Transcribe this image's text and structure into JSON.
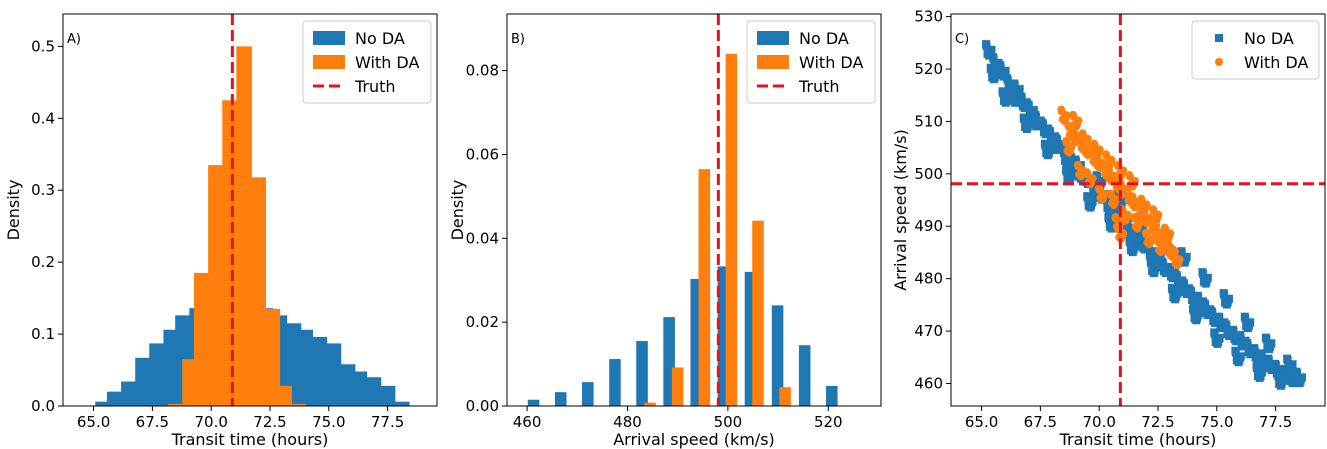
{
  "colors": {
    "no_da": "#1f77b4",
    "with_da": "#ff7f0e",
    "truth": "#e8101e"
  },
  "chart_data": [
    {
      "type": "bar",
      "panel_label": "A)",
      "xlabel": "Transit time (hours)",
      "ylabel": "Density",
      "xlim": [
        63.7,
        79.6
      ],
      "ylim": [
        0,
        0.545
      ],
      "xticks": [
        65.0,
        67.5,
        70.0,
        72.5,
        75.0,
        77.5
      ],
      "xtick_labels": [
        "65.0",
        "67.5",
        "70.0",
        "72.5",
        "75.0",
        "77.5"
      ],
      "yticks": [
        0.0,
        0.1,
        0.2,
        0.3,
        0.4,
        0.5
      ],
      "ytick_labels": [
        "0.0",
        "0.1",
        "0.2",
        "0.3",
        "0.4",
        "0.5"
      ],
      "bin_width": 0.66,
      "series": [
        {
          "name": "No DA",
          "color": "#1f77b4",
          "x": [
            65.4,
            65.9,
            66.5,
            67.1,
            67.7,
            68.3,
            68.8,
            69.4,
            70.0,
            70.5,
            71.1,
            71.7,
            72.3,
            72.9,
            73.5,
            74.0,
            74.6,
            75.2,
            75.8,
            76.3,
            76.9,
            77.5,
            78.1
          ],
          "values": [
            0.006,
            0.02,
            0.034,
            0.067,
            0.087,
            0.106,
            0.126,
            0.136,
            0.146,
            0.155,
            0.146,
            0.155,
            0.136,
            0.126,
            0.115,
            0.106,
            0.096,
            0.087,
            0.058,
            0.048,
            0.04,
            0.028,
            0.006
          ]
        },
        {
          "name": "With DA",
          "color": "#ff7f0e",
          "x": [
            68.5,
            69.1,
            69.6,
            70.2,
            70.8,
            71.4,
            72.0,
            72.6,
            73.1,
            73.7
          ],
          "values": [
            0.003,
            0.065,
            0.185,
            0.335,
            0.425,
            0.5,
            0.318,
            0.135,
            0.028,
            0.003
          ]
        }
      ],
      "truth": {
        "name": "Truth",
        "x": 70.9
      },
      "legend": {
        "location": "upper right",
        "entries": [
          "No DA",
          "With DA",
          "Truth"
        ]
      }
    },
    {
      "type": "bar",
      "panel_label": "B)",
      "xlabel": "Arrival speed (km/s)",
      "ylabel": "Density",
      "xlim": [
        456.0,
        530.5
      ],
      "ylim": [
        0,
        0.0935
      ],
      "xticks": [
        460,
        480,
        500,
        520
      ],
      "xtick_labels": [
        "460",
        "480",
        "500",
        "520"
      ],
      "yticks": [
        0.0,
        0.02,
        0.04,
        0.06,
        0.08
      ],
      "ytick_labels": [
        "0.00",
        "0.02",
        "0.04",
        "0.06",
        "0.08"
      ],
      "bin_width": 2.3,
      "series": [
        {
          "name": "No DA",
          "color": "#1f77b4",
          "x": [
            461.3,
            466.7,
            472.1,
            477.5,
            482.9,
            488.3,
            493.7,
            499.1,
            504.5,
            509.9,
            515.3,
            520.7
          ],
          "values": [
            0.0015,
            0.0033,
            0.0057,
            0.0112,
            0.0155,
            0.0212,
            0.0303,
            0.0333,
            0.032,
            0.024,
            0.0145,
            0.0048
          ]
        },
        {
          "name": "With DA",
          "color": "#ff7f0e",
          "x": [
            484.5,
            490.0,
            495.3,
            500.7,
            506.0,
            511.4
          ],
          "values": [
            0.0008,
            0.0092,
            0.0565,
            0.084,
            0.0442,
            0.0045
          ]
        }
      ],
      "truth": {
        "name": "Truth",
        "x": 498.1
      },
      "legend": {
        "location": "upper right",
        "entries": [
          "No DA",
          "With DA",
          "Truth"
        ]
      }
    },
    {
      "type": "scatter",
      "panel_label": "C)",
      "xlabel": "Transit time (hours)",
      "ylabel": "Arrival speed (km/s)",
      "xlim": [
        63.7,
        79.6
      ],
      "ylim": [
        455.7,
        530.5
      ],
      "xticks": [
        65.0,
        67.5,
        70.0,
        72.5,
        75.0,
        77.5
      ],
      "xtick_labels": [
        "65.0",
        "67.5",
        "70.0",
        "72.5",
        "75.0",
        "77.5"
      ],
      "yticks": [
        460,
        470,
        480,
        490,
        500,
        510,
        520,
        530
      ],
      "ytick_labels": [
        "460",
        "470",
        "480",
        "490",
        "500",
        "510",
        "520",
        "530"
      ],
      "series": [
        {
          "name": "No DA",
          "color": "#1f77b4",
          "marker": "square",
          "x": [
            65.3,
            65.6,
            65.9,
            66.2,
            66.5,
            66.8,
            67.1,
            67.4,
            67.7,
            68.0,
            68.3,
            68.6,
            68.9,
            69.2,
            69.5,
            69.8,
            70.1,
            70.4,
            70.7,
            71.0,
            71.3,
            71.6,
            71.9,
            72.2,
            72.5,
            72.8,
            73.1,
            73.4,
            73.7,
            74.0,
            74.3,
            74.6,
            74.9,
            75.2,
            75.5,
            75.8,
            76.1,
            76.4,
            76.7,
            77.0,
            77.3,
            77.6,
            77.9,
            78.2,
            78.5,
            65.5,
            66.0,
            66.4,
            66.9,
            67.3,
            67.8,
            68.2,
            68.7,
            69.1,
            69.6,
            70.0,
            70.5,
            70.9,
            71.4,
            71.8,
            72.3,
            72.7,
            73.2,
            73.6,
            74.1,
            74.5,
            75.0,
            75.4,
            75.9,
            76.3,
            76.8,
            77.2,
            77.7,
            78.1
          ],
          "y": [
            523.5,
            521.0,
            519.5,
            517.0,
            516.0,
            513.5,
            512.0,
            510.0,
            508.5,
            507.0,
            505.5,
            503.0,
            502.0,
            500.0,
            499.0,
            497.0,
            496.0,
            494.0,
            492.5,
            491.0,
            489.5,
            488.0,
            486.5,
            485.0,
            484.0,
            482.0,
            481.0,
            479.5,
            478.0,
            476.5,
            475.5,
            474.0,
            472.5,
            471.5,
            470.0,
            469.0,
            468.0,
            466.5,
            465.5,
            464.5,
            463.5,
            462.5,
            461.5,
            461.0,
            461.0,
            519.0,
            514.5,
            514.5,
            509.5,
            510.0,
            504.5,
            505.5,
            499.5,
            501.5,
            494.5,
            498.5,
            490.5,
            495.0,
            486.0,
            490.5,
            482.0,
            487.5,
            477.0,
            484.0,
            473.0,
            480.0,
            468.5,
            476.0,
            465.0,
            471.5,
            462.0,
            467.5,
            460.5,
            463.5
          ]
        },
        {
          "name": "With DA",
          "color": "#ff7f0e",
          "marker": "circle",
          "x": [
            68.5,
            68.8,
            69.0,
            69.3,
            69.5,
            69.8,
            70.0,
            70.3,
            70.5,
            70.8,
            71.0,
            71.3,
            71.5,
            71.8,
            72.0,
            72.3,
            72.5,
            72.8,
            73.0,
            73.3,
            68.7,
            69.2,
            69.6,
            70.1,
            70.6,
            71.1,
            71.6,
            72.1,
            72.6,
            73.1,
            69.0,
            69.4,
            69.9,
            70.4,
            70.9,
            71.4,
            71.9,
            72.4,
            72.9,
            70.8,
            70.9
          ],
          "y": [
            511.0,
            508.0,
            507.0,
            505.5,
            504.5,
            503.0,
            502.0,
            500.5,
            499.5,
            498.0,
            497.0,
            495.5,
            494.5,
            493.0,
            491.5,
            490.0,
            488.5,
            487.0,
            485.5,
            483.5,
            505.0,
            500.5,
            499.0,
            496.0,
            495.0,
            492.0,
            490.5,
            487.5,
            486.0,
            485.0,
            510.0,
            506.5,
            504.5,
            502.5,
            500.5,
            498.5,
            494.0,
            492.0,
            488.5,
            490.5,
            488.5
          ]
        }
      ],
      "truth": {
        "name": "Truth",
        "x": 70.9,
        "y": 498.1
      },
      "legend": {
        "location": "upper right",
        "entries": [
          "No DA",
          "With DA"
        ]
      }
    }
  ]
}
